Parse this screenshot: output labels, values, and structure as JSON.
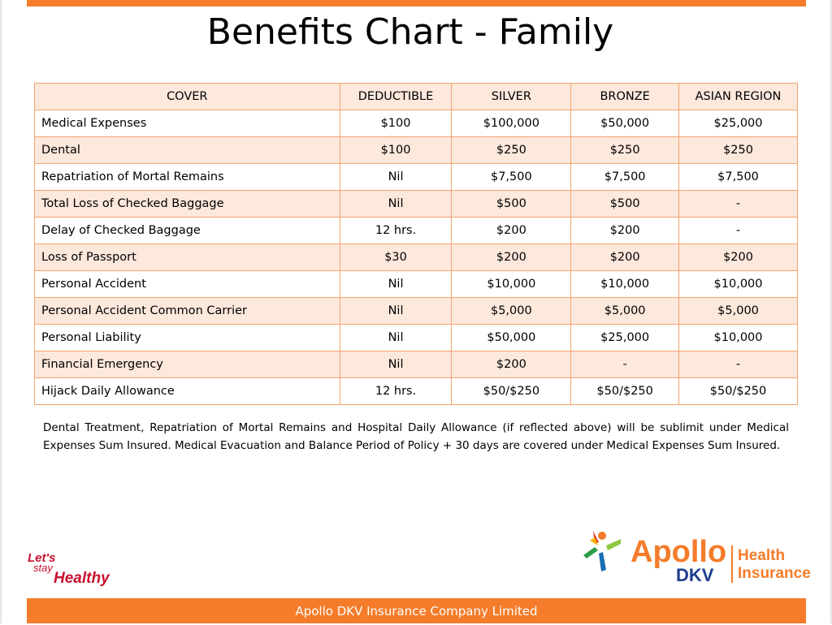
{
  "title": "Benefits Chart - Family",
  "table": {
    "headers": [
      "COVER",
      "DEDUCTIBLE",
      "SILVER",
      "BRONZE",
      "ASIAN REGION"
    ],
    "rows": [
      [
        "Medical Expenses",
        "$100",
        "$100,000",
        "$50,000",
        "$25,000"
      ],
      [
        "Dental",
        "$100",
        "$250",
        "$250",
        "$250"
      ],
      [
        "Repatriation of Mortal Remains",
        "Nil",
        "$7,500",
        "$7,500",
        "$7,500"
      ],
      [
        "Total Loss of Checked Baggage",
        "Nil",
        "$500",
        "$500",
        "-"
      ],
      [
        "Delay of Checked Baggage",
        "12 hrs.",
        "$200",
        "$200",
        "-"
      ],
      [
        "Loss of Passport",
        "$30",
        "$200",
        "$200",
        "$200"
      ],
      [
        "Personal Accident",
        "Nil",
        "$10,000",
        "$10,000",
        "$10,000"
      ],
      [
        "Personal Accident Common Carrier",
        "Nil",
        "$5,000",
        "$5,000",
        "$5,000"
      ],
      [
        "Personal Liability",
        "Nil",
        "$50,000",
        "$25,000",
        "$10,000"
      ],
      [
        "Financial Emergency",
        "Nil",
        "$200",
        "-",
        "-"
      ],
      [
        "Hijack Daily Allowance",
        "12 hrs.",
        "$50/$250",
        "$50/$250",
        "$50/$250"
      ]
    ]
  },
  "note": "Dental Treatment, Repatriation of Mortal Remains and Hospital Daily Allowance (if reflected above) will be sublimit under Medical Expenses Sum Insured. Medical Evacuation and Balance Period of Policy + 30 days are covered under Medical Expenses Sum Insured.",
  "logos": {
    "lets_line1": "Let's",
    "lets_line2": "stay",
    "lets_line3": "Healthy",
    "apollo_name": "Apollo",
    "apollo_sub": "DKV",
    "apollo_health": "Health",
    "apollo_insurance": "Insurance"
  },
  "footer": "Apollo DKV Insurance Company Limited",
  "colors": {
    "accent": "#f47c2a",
    "row_shade": "#fde8dc",
    "border": "#f5a470",
    "dkv_blue": "#1b3f8f"
  }
}
